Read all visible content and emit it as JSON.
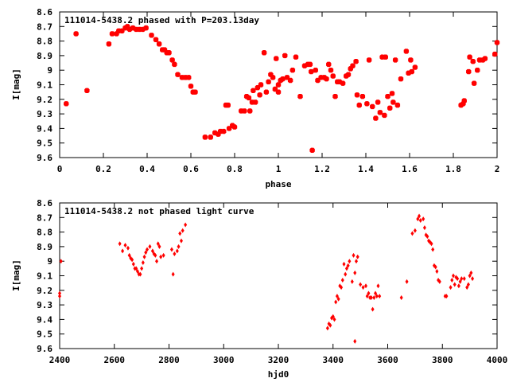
{
  "chart_data": [
    {
      "type": "scatter",
      "title": "111014-5438.2 phased with P=203.13day",
      "xlabel": "phase",
      "ylabel": "I[mag]",
      "xlim": [
        0,
        2
      ],
      "ylim": [
        8.6,
        9.6
      ],
      "y_inverted": true,
      "grid": false,
      "marker_color": "#ff0000",
      "xticks": [
        "0",
        "0.2",
        "0.4",
        "0.6",
        "0.8",
        "1",
        "1.2",
        "1.4",
        "1.6",
        "1.8",
        "2"
      ],
      "yticks": [
        "8.6",
        "8.7",
        "8.8",
        "8.9",
        "9",
        "9.1",
        "9.2",
        "9.3",
        "9.4",
        "9.5",
        "9.6"
      ],
      "series": [
        {
          "points": [
            [
              0.03,
              9.23
            ],
            [
              0.075,
              8.75
            ],
            [
              0.125,
              9.14
            ],
            [
              0.225,
              8.82
            ],
            [
              0.24,
              8.75
            ],
            [
              0.26,
              8.75
            ],
            [
              0.27,
              8.73
            ],
            [
              0.285,
              8.73
            ],
            [
              0.3,
              8.71
            ],
            [
              0.31,
              8.7
            ],
            [
              0.32,
              8.72
            ],
            [
              0.335,
              8.71
            ],
            [
              0.35,
              8.72
            ],
            [
              0.365,
              8.72
            ],
            [
              0.38,
              8.72
            ],
            [
              0.395,
              8.71
            ],
            [
              0.42,
              8.76
            ],
            [
              0.44,
              8.79
            ],
            [
              0.455,
              8.82
            ],
            [
              0.47,
              8.86
            ],
            [
              0.48,
              8.86
            ],
            [
              0.49,
              8.88
            ],
            [
              0.5,
              8.88
            ],
            [
              0.515,
              8.93
            ],
            [
              0.525,
              8.96
            ],
            [
              0.54,
              9.03
            ],
            [
              0.56,
              9.05
            ],
            [
              0.575,
              9.05
            ],
            [
              0.59,
              9.05
            ],
            [
              0.6,
              9.11
            ],
            [
              0.61,
              9.15
            ],
            [
              0.62,
              9.15
            ],
            [
              0.665,
              9.46
            ],
            [
              0.69,
              9.46
            ],
            [
              0.71,
              9.43
            ],
            [
              0.725,
              9.44
            ],
            [
              0.735,
              9.42
            ],
            [
              0.75,
              9.42
            ],
            [
              0.76,
              9.24
            ],
            [
              0.77,
              9.24
            ],
            [
              0.775,
              9.4
            ],
            [
              0.79,
              9.38
            ],
            [
              0.8,
              9.39
            ],
            [
              0.83,
              9.28
            ],
            [
              0.845,
              9.28
            ],
            [
              0.855,
              9.18
            ],
            [
              0.865,
              9.19
            ],
            [
              0.87,
              9.28
            ],
            [
              0.88,
              9.22
            ],
            [
              0.885,
              9.14
            ],
            [
              0.895,
              9.22
            ],
            [
              0.905,
              9.12
            ],
            [
              0.915,
              9.17
            ],
            [
              0.92,
              9.1
            ],
            [
              0.935,
              8.88
            ],
            [
              0.945,
              9.15
            ],
            [
              0.955,
              9.08
            ],
            [
              0.965,
              9.03
            ],
            [
              0.975,
              9.05
            ],
            [
              0.985,
              9.13
            ],
            [
              0.99,
              8.92
            ],
            [
              1.0,
              9.1
            ],
            [
              1.0,
              9.15
            ],
            [
              1.01,
              9.07
            ],
            [
              1.02,
              9.06
            ],
            [
              1.03,
              8.9
            ],
            [
              1.04,
              9.05
            ],
            [
              1.055,
              9.07
            ],
            [
              1.065,
              9.0
            ],
            [
              1.08,
              8.91
            ],
            [
              1.1,
              9.18
            ],
            [
              1.12,
              8.97
            ],
            [
              1.135,
              8.96
            ],
            [
              1.145,
              8.96
            ],
            [
              1.15,
              9.01
            ],
            [
              1.155,
              9.55
            ],
            [
              1.17,
              9.0
            ],
            [
              1.18,
              9.07
            ],
            [
              1.195,
              9.05
            ],
            [
              1.21,
              9.05
            ],
            [
              1.22,
              9.06
            ],
            [
              1.23,
              8.96
            ],
            [
              1.24,
              9.0
            ],
            [
              1.25,
              9.04
            ],
            [
              1.26,
              9.18
            ],
            [
              1.27,
              9.08
            ],
            [
              1.28,
              9.08
            ],
            [
              1.295,
              9.09
            ],
            [
              1.31,
              9.04
            ],
            [
              1.32,
              9.03
            ],
            [
              1.33,
              8.99
            ],
            [
              1.34,
              8.97
            ],
            [
              1.355,
              8.94
            ],
            [
              1.36,
              9.17
            ],
            [
              1.37,
              9.24
            ],
            [
              1.385,
              9.18
            ],
            [
              1.405,
              9.23
            ],
            [
              1.415,
              8.93
            ],
            [
              1.43,
              9.25
            ],
            [
              1.445,
              9.33
            ],
            [
              1.455,
              9.22
            ],
            [
              1.465,
              9.29
            ],
            [
              1.475,
              8.91
            ],
            [
              1.485,
              9.31
            ],
            [
              1.49,
              8.91
            ],
            [
              1.5,
              9.18
            ],
            [
              1.51,
              9.26
            ],
            [
              1.52,
              9.16
            ],
            [
              1.525,
              9.22
            ],
            [
              1.535,
              8.93
            ],
            [
              1.545,
              9.24
            ],
            [
              1.56,
              9.06
            ],
            [
              1.585,
              8.87
            ],
            [
              1.595,
              9.02
            ],
            [
              1.605,
              8.93
            ],
            [
              1.61,
              9.01
            ],
            [
              1.625,
              8.98
            ],
            [
              1.835,
              9.24
            ],
            [
              1.845,
              9.23
            ],
            [
              1.85,
              9.21
            ],
            [
              1.87,
              9.01
            ],
            [
              1.875,
              8.91
            ],
            [
              1.89,
              8.94
            ],
            [
              1.895,
              9.09
            ],
            [
              1.91,
              9.0
            ],
            [
              1.92,
              8.93
            ],
            [
              1.935,
              8.93
            ],
            [
              1.945,
              8.92
            ],
            [
              1.99,
              8.89
            ],
            [
              2.0,
              8.81
            ]
          ]
        }
      ]
    },
    {
      "type": "scatter",
      "title": "111014-5438.2 not phased light curve",
      "xlabel": "hjd0",
      "ylabel": "I[mag]",
      "xlim": [
        2400,
        4000
      ],
      "ylim": [
        8.6,
        9.6
      ],
      "y_inverted": true,
      "grid": false,
      "marker_color": "#ff0000",
      "xticks": [
        "2400",
        "2600",
        "2800",
        "3000",
        "3200",
        "3400",
        "3600",
        "3800",
        "4000"
      ],
      "yticks": [
        "8.6",
        "8.7",
        "8.8",
        "8.9",
        "9",
        "9.1",
        "9.2",
        "9.3",
        "9.4",
        "9.5",
        "9.6"
      ],
      "series": [
        {
          "points": [
            [
              2400,
              9.22
            ],
            [
              2400,
              9.24
            ],
            [
              2405,
              9.0
            ],
            [
              2620,
              8.88
            ],
            [
              2630,
              8.93
            ],
            [
              2640,
              8.89
            ],
            [
              2650,
              8.91
            ],
            [
              2655,
              8.96
            ],
            [
              2660,
              8.98
            ],
            [
              2665,
              8.99
            ],
            [
              2670,
              9.02
            ],
            [
              2675,
              9.05
            ],
            [
              2680,
              9.05
            ],
            [
              2685,
              9.07
            ],
            [
              2690,
              9.09
            ],
            [
              2695,
              9.09
            ],
            [
              2700,
              9.05
            ],
            [
              2705,
              9.01
            ],
            [
              2710,
              8.97
            ],
            [
              2715,
              8.94
            ],
            [
              2720,
              8.92
            ],
            [
              2730,
              8.9
            ],
            [
              2740,
              8.93
            ],
            [
              2745,
              8.95
            ],
            [
              2750,
              8.96
            ],
            [
              2755,
              9.0
            ],
            [
              2760,
              8.88
            ],
            [
              2765,
              8.9
            ],
            [
              2770,
              8.97
            ],
            [
              2780,
              8.96
            ],
            [
              2810,
              8.92
            ],
            [
              2815,
              9.09
            ],
            [
              2820,
              8.95
            ],
            [
              2830,
              8.93
            ],
            [
              2835,
              8.9
            ],
            [
              2840,
              8.81
            ],
            [
              2845,
              8.86
            ],
            [
              2850,
              8.79
            ],
            [
              2860,
              8.75
            ],
            [
              3380,
              9.46
            ],
            [
              3385,
              9.43
            ],
            [
              3390,
              9.44
            ],
            [
              3395,
              9.39
            ],
            [
              3400,
              9.38
            ],
            [
              3405,
              9.4
            ],
            [
              3410,
              9.28
            ],
            [
              3415,
              9.24
            ],
            [
              3420,
              9.26
            ],
            [
              3425,
              9.17
            ],
            [
              3430,
              9.18
            ],
            [
              3435,
              9.13
            ],
            [
              3440,
              9.02
            ],
            [
              3445,
              9.09
            ],
            [
              3450,
              9.05
            ],
            [
              3455,
              9.03
            ],
            [
              3460,
              9.0
            ],
            [
              3470,
              9.14
            ],
            [
              3475,
              8.96
            ],
            [
              3480,
              9.08
            ],
            [
              3480,
              9.55
            ],
            [
              3485,
              9.0
            ],
            [
              3490,
              8.97
            ],
            [
              3500,
              9.16
            ],
            [
              3510,
              9.18
            ],
            [
              3520,
              9.17
            ],
            [
              3525,
              9.24
            ],
            [
              3530,
              9.22
            ],
            [
              3535,
              9.25
            ],
            [
              3540,
              9.25
            ],
            [
              3545,
              9.33
            ],
            [
              3550,
              9.25
            ],
            [
              3555,
              9.22
            ],
            [
              3560,
              9.24
            ],
            [
              3565,
              9.17
            ],
            [
              3570,
              9.24
            ],
            [
              3650,
              9.25
            ],
            [
              3670,
              9.14
            ],
            [
              3690,
              8.81
            ],
            [
              3700,
              8.79
            ],
            [
              3710,
              8.71
            ],
            [
              3715,
              8.69
            ],
            [
              3720,
              8.72
            ],
            [
              3730,
              8.71
            ],
            [
              3735,
              8.77
            ],
            [
              3740,
              8.82
            ],
            [
              3745,
              8.83
            ],
            [
              3750,
              8.86
            ],
            [
              3755,
              8.87
            ],
            [
              3760,
              8.88
            ],
            [
              3765,
              8.92
            ],
            [
              3770,
              9.03
            ],
            [
              3775,
              9.04
            ],
            [
              3780,
              9.07
            ],
            [
              3785,
              9.13
            ],
            [
              3790,
              9.14
            ],
            [
              3810,
              9.24
            ],
            [
              3815,
              9.24
            ],
            [
              3830,
              9.18
            ],
            [
              3835,
              9.13
            ],
            [
              3840,
              9.1
            ],
            [
              3845,
              9.16
            ],
            [
              3850,
              9.11
            ],
            [
              3855,
              9.12
            ],
            [
              3860,
              9.17
            ],
            [
              3865,
              9.14
            ],
            [
              3870,
              9.12
            ],
            [
              3880,
              9.12
            ],
            [
              3890,
              9.18
            ],
            [
              3895,
              9.16
            ],
            [
              3900,
              9.1
            ],
            [
              3905,
              9.08
            ],
            [
              3910,
              9.12
            ]
          ]
        }
      ]
    }
  ]
}
